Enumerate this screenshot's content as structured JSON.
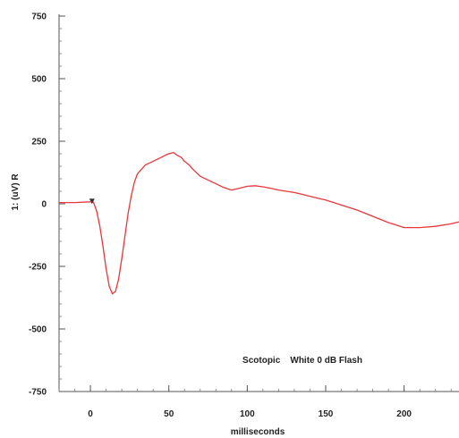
{
  "chart_data": {
    "type": "line",
    "title": "",
    "xlabel": "milliseconds",
    "ylabel": "1: (uV) R",
    "annotation": "Scotopic    White 0 dB Flash",
    "xlim": [
      -20,
      235
    ],
    "ylim": [
      -750,
      750
    ],
    "x_ticks": [
      0,
      50,
      100,
      150,
      200
    ],
    "x_tick_labels": [
      "0",
      "50",
      "100",
      "150",
      "200"
    ],
    "y_ticks": [
      750,
      500,
      250,
      0,
      -250,
      -500,
      -750
    ],
    "y_tick_labels": [
      "750",
      "500",
      "250",
      "0",
      "-250",
      "-500",
      "-750"
    ],
    "grid": false,
    "marker": {
      "x": 1,
      "y": 10,
      "symbol": "triangle-down"
    },
    "series": [
      {
        "color": "#e8373b",
        "x": [
          -20,
          -10,
          0,
          1,
          2,
          4,
          6,
          8,
          10,
          12,
          14,
          16,
          18,
          20,
          22,
          24,
          26,
          28,
          30,
          35,
          40,
          45,
          48,
          50,
          53,
          55,
          58,
          60,
          63,
          65,
          70,
          75,
          80,
          85,
          90,
          95,
          100,
          105,
          110,
          115,
          120,
          125,
          130,
          135,
          140,
          145,
          150,
          160,
          170,
          180,
          190,
          195,
          200,
          210,
          220,
          230,
          235
        ],
        "y": [
          5,
          5,
          8,
          10,
          5,
          -30,
          -90,
          -170,
          -260,
          -330,
          -360,
          -350,
          -300,
          -220,
          -130,
          -40,
          30,
          85,
          120,
          155,
          170,
          185,
          195,
          200,
          205,
          195,
          185,
          170,
          155,
          140,
          110,
          95,
          80,
          65,
          55,
          62,
          70,
          72,
          68,
          62,
          55,
          50,
          45,
          38,
          30,
          22,
          15,
          -5,
          -25,
          -50,
          -75,
          -85,
          -95,
          -95,
          -90,
          -80,
          -72
        ]
      }
    ]
  }
}
